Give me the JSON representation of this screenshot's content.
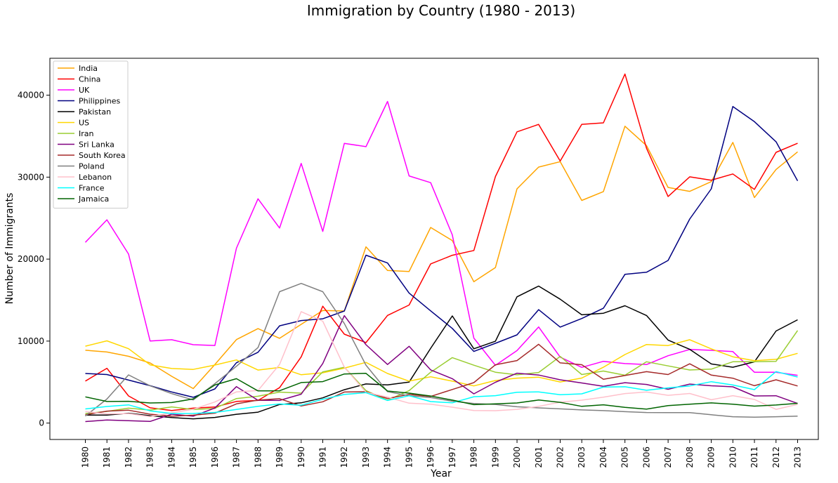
{
  "chart_data": {
    "type": "line",
    "title": "Immigration by Country (1980 - 2013)",
    "xlabel": "Year",
    "ylabel": "Number of Immigrants",
    "ylim": [
      -2000,
      44500
    ],
    "yticks": [
      0,
      10000,
      20000,
      30000,
      40000
    ],
    "grid": false,
    "legend_position": "top-left",
    "x": [
      "1980",
      "1981",
      "1982",
      "1983",
      "1984",
      "1985",
      "1986",
      "1987",
      "1988",
      "1989",
      "1990",
      "1991",
      "1992",
      "1993",
      "1994",
      "1995",
      "1996",
      "1997",
      "1998",
      "1999",
      "2000",
      "2001",
      "2002",
      "2003",
      "2004",
      "2005",
      "2006",
      "2007",
      "2008",
      "2009",
      "2010",
      "2011",
      "2012",
      "2013"
    ],
    "series": [
      {
        "name": "India",
        "color": "#FFA500",
        "values": [
          8880,
          8670,
          8147,
          7338,
          5704,
          4211,
          7150,
          10189,
          11522,
          10343,
          12041,
          13734,
          13673,
          21496,
          18620,
          18489,
          23859,
          22268,
          17241,
          18974,
          28572,
          31223,
          31889,
          27155,
          28235,
          36210,
          33848,
          28742,
          28261,
          29456,
          34235,
          27509,
          30933,
          33087
        ]
      },
      {
        "name": "China",
        "color": "#FF0000",
        "values": [
          5123,
          6682,
          3308,
          1863,
          1527,
          1816,
          1960,
          2643,
          2758,
          4323,
          8076,
          14255,
          10846,
          9817,
          13128,
          14398,
          19415,
          20475,
          21049,
          30069,
          35529,
          36434,
          31961,
          36439,
          36619,
          42584,
          33518,
          27642,
          30037,
          29622,
          30391,
          28502,
          33024,
          34129
        ]
      },
      {
        "name": "UK",
        "color": "#FF00FF",
        "values": [
          22045,
          24796,
          20620,
          10015,
          10170,
          9564,
          9470,
          21337,
          27359,
          23795,
          31668,
          23380,
          34123,
          33720,
          39231,
          30145,
          29322,
          22965,
          10367,
          7045,
          8840,
          11728,
          8046,
          6797,
          7533,
          7258,
          7140,
          8216,
          8979,
          8876,
          8724,
          6204,
          6195,
          5827
        ]
      },
      {
        "name": "Philippines",
        "color": "#000080",
        "values": [
          6051,
          5921,
          5249,
          4562,
          3801,
          3150,
          4166,
          7360,
          8639,
          11865,
          12509,
          12718,
          13670,
          20479,
          19532,
          15864,
          13692,
          11549,
          8735,
          9734,
          10763,
          13836,
          11707,
          12758,
          14004,
          18139,
          18400,
          19837,
          24887,
          28573,
          38617,
          36765,
          34315,
          29544
        ]
      },
      {
        "name": "Pakistan",
        "color": "#000000",
        "values": [
          978,
          972,
          1201,
          900,
          668,
          514,
          691,
          1072,
          1334,
          2261,
          2470,
          3079,
          4071,
          4777,
          4666,
          4994,
          9125,
          13073,
          9068,
          9979,
          15400,
          16708,
          15110,
          13205,
          13399,
          14314,
          13127,
          10124,
          8994,
          7217,
          6811,
          7468,
          11227,
          12603
        ]
      },
      {
        "name": "US",
        "color": "#FFD700",
        "values": [
          9378,
          10030,
          9074,
          7100,
          6661,
          6543,
          7074,
          7705,
          6469,
          6790,
          5895,
          6137,
          6702,
          7402,
          6051,
          5116,
          5647,
          5115,
          4530,
          5197,
          5487,
          5595,
          5011,
          5497,
          6813,
          8364,
          9585,
          9456,
          10167,
          9053,
          8088,
          7609,
          7778,
          8505
        ]
      },
      {
        "name": "Iran",
        "color": "#9ACD32",
        "values": [
          1172,
          1429,
          1822,
          1592,
          1977,
          1648,
          1794,
          2989,
          3273,
          3781,
          3655,
          6250,
          6814,
          3959,
          2785,
          3956,
          6205,
          7982,
          7057,
          6208,
          5884,
          6169,
          8129,
          5918,
          6348,
          5837,
          7480,
          6974,
          6475,
          6580,
          7477,
          7479,
          7534,
          11291
        ]
      },
      {
        "name": "Sri Lanka",
        "color": "#800080",
        "values": [
          185,
          371,
          290,
          197,
          1086,
          845,
          1838,
          4447,
          2779,
          2758,
          3525,
          7266,
          13102,
          9563,
          7150,
          9368,
          6484,
          5415,
          3566,
          4982,
          6081,
          5861,
          5279,
          4892,
          4495,
          4930,
          4714,
          4123,
          4756,
          4547,
          4422,
          3309,
          3338,
          2394
        ]
      },
      {
        "name": "South Korea",
        "color": "#A52A2A",
        "values": [
          1011,
          1456,
          1572,
          1081,
          847,
          962,
          1208,
          2338,
          2805,
          2979,
          2087,
          2598,
          3790,
          3819,
          3005,
          3501,
          3250,
          4093,
          4938,
          7108,
          7629,
          9613,
          7344,
          7122,
          5342,
          5804,
          6271,
          5917,
          7231,
          5852,
          5472,
          4563,
          5278,
          4527
        ]
      },
      {
        "name": "Poland",
        "color": "#808080",
        "values": [
          863,
          2930,
          5881,
          4546,
          3588,
          2819,
          4808,
          6931,
          9211,
          16025,
          17040,
          16028,
          12145,
          7069,
          3829,
          3328,
          3113,
          2668,
          2392,
          2275,
          1993,
          1856,
          1733,
          1603,
          1517,
          1395,
          1290,
          1273,
          1284,
          1012,
          778,
          716,
          771,
          852
        ]
      },
      {
        "name": "Lebanon",
        "color": "#FFC0CB",
        "values": [
          1409,
          1119,
          1159,
          789,
          1253,
          1683,
          2576,
          3803,
          3970,
          7157,
          13598,
          12426,
          6820,
          3757,
          3169,
          2429,
          2298,
          1941,
          1528,
          1511,
          1677,
          2045,
          2546,
          2793,
          3151,
          3604,
          3788,
          3385,
          3605,
          2848,
          3342,
          2878,
          1674,
          2281
        ]
      },
      {
        "name": "France",
        "color": "#00FFFF",
        "values": [
          1729,
          2027,
          2219,
          1490,
          1169,
          1177,
          1298,
          1658,
          2038,
          2332,
          2177,
          2911,
          3487,
          3709,
          2759,
          3332,
          2623,
          2473,
          3214,
          3343,
          3765,
          3806,
          3463,
          3568,
          4391,
          4429,
          4002,
          4290,
          4532,
          5051,
          4646,
          4080,
          6280,
          5623
        ]
      },
      {
        "name": "Jamaica",
        "color": "#006400",
        "values": [
          3198,
          2634,
          2661,
          2455,
          2508,
          2938,
          4649,
          5415,
          3924,
          3946,
          4945,
          5056,
          5991,
          6065,
          3913,
          3650,
          3304,
          2806,
          2245,
          2339,
          2454,
          2814,
          2531,
          2045,
          2231,
          1913,
          1706,
          2135,
          2309,
          2463,
          2299,
          2065,
          2205,
          2414
        ]
      }
    ]
  }
}
